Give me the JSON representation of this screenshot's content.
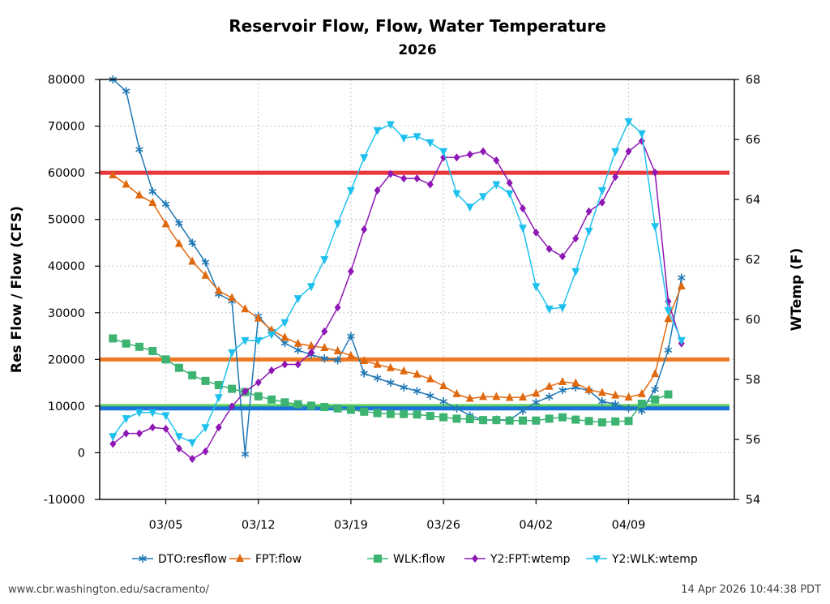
{
  "chart_data": {
    "type": "line",
    "title": "Reservoir Flow, Flow, Water Temperature",
    "subtitle": "2026",
    "ylabel": "Res Flow / Flow (CFS)",
    "y2label": "WTemp (F)",
    "ylim": [
      -10000,
      80000
    ],
    "y2lim": [
      54,
      68
    ],
    "yticks": [
      -10000,
      0,
      10000,
      20000,
      30000,
      40000,
      50000,
      60000,
      70000,
      80000
    ],
    "y2ticks": [
      54,
      56,
      58,
      60,
      62,
      64,
      66,
      68
    ],
    "xlim": [
      "2026-02-28",
      "2026-04-17"
    ],
    "xticks": [
      {
        "date": "2026-03-05",
        "label": "03/05"
      },
      {
        "date": "2026-03-12",
        "label": "03/12"
      },
      {
        "date": "2026-03-19",
        "label": "03/19"
      },
      {
        "date": "2026-03-26",
        "label": "03/26"
      },
      {
        "date": "2026-04-02",
        "label": "04/02"
      },
      {
        "date": "2026-04-09",
        "label": "04/09"
      }
    ],
    "grid": true,
    "legend_placement": "bottom",
    "x": [
      "2026-03-01",
      "2026-03-02",
      "2026-03-03",
      "2026-03-04",
      "2026-03-05",
      "2026-03-06",
      "2026-03-07",
      "2026-03-08",
      "2026-03-09",
      "2026-03-10",
      "2026-03-11",
      "2026-03-12",
      "2026-03-13",
      "2026-03-14",
      "2026-03-15",
      "2026-03-16",
      "2026-03-17",
      "2026-03-18",
      "2026-03-19",
      "2026-03-20",
      "2026-03-21",
      "2026-03-22",
      "2026-03-23",
      "2026-03-24",
      "2026-03-25",
      "2026-03-26",
      "2026-03-27",
      "2026-03-28",
      "2026-03-29",
      "2026-03-30",
      "2026-03-31",
      "2026-04-01",
      "2026-04-02",
      "2026-04-03",
      "2026-04-04",
      "2026-04-05",
      "2026-04-06",
      "2026-04-07",
      "2026-04-08",
      "2026-04-09",
      "2026-04-10",
      "2026-04-11",
      "2026-04-12",
      "2026-04-13"
    ],
    "series": [
      {
        "name": "DTO:resflow",
        "axis": "left",
        "color": "#1f77b4",
        "marker": "star",
        "values": [
          80000,
          77500,
          65000,
          56000,
          53300,
          49200,
          45000,
          40800,
          34000,
          32500,
          -300,
          29300,
          26000,
          23500,
          22000,
          21000,
          20200,
          19800,
          25000,
          17000,
          16000,
          15000,
          14000,
          13200,
          12200,
          11000,
          9500,
          8000,
          7000,
          7100,
          7000,
          9000,
          10800,
          12000,
          13400,
          14000,
          13300,
          11000,
          10400,
          9500,
          9000,
          13600,
          22000,
          37500
        ],
        "_note_skip": ""
      },
      {
        "name": "FPT:flow",
        "axis": "left",
        "color": "#e06910",
        "marker": "triangle-up",
        "values": [
          59500,
          57500,
          55200,
          53600,
          49000,
          44800,
          41000,
          38000,
          34700,
          33200,
          30800,
          28800,
          26300,
          24700,
          23400,
          22900,
          22500,
          21800,
          20800,
          19700,
          18900,
          18200,
          17500,
          16800,
          15800,
          14300,
          12600,
          11600,
          12000,
          12000,
          11800,
          11900,
          12700,
          14200,
          15200,
          14900,
          13500,
          12900,
          12300,
          11900,
          12600,
          16900,
          28700,
          35700
        ]
      },
      {
        "name": "WLK:flow",
        "axis": "left",
        "color": "#3cb371",
        "marker": "square",
        "values": [
          24500,
          23400,
          22700,
          21800,
          20000,
          18200,
          16600,
          15400,
          14500,
          13700,
          13000,
          12100,
          11400,
          10800,
          10400,
          10100,
          9800,
          9500,
          9200,
          8800,
          8500,
          8300,
          8300,
          8200,
          7900,
          7600,
          7300,
          7200,
          7000,
          7000,
          6900,
          6900,
          6900,
          7300,
          7600,
          7100,
          6800,
          6500,
          6700,
          6800,
          10500,
          11400,
          12500,
          null
        ]
      },
      {
        "name": "Y2:FPT:wtemp",
        "axis": "right",
        "color": "#8e17b5",
        "marker": "diamond",
        "values": [
          55.85,
          56.2,
          56.2,
          56.4,
          56.35,
          55.7,
          55.35,
          55.6,
          56.4,
          57.1,
          57.6,
          57.9,
          58.3,
          58.5,
          58.5,
          58.9,
          59.6,
          60.4,
          61.6,
          63.0,
          64.3,
          64.85,
          64.7,
          64.7,
          64.5,
          65.4,
          65.4,
          65.5,
          65.6,
          65.3,
          64.55,
          63.7,
          62.9,
          62.35,
          62.1,
          62.7,
          63.6,
          63.9,
          64.75,
          65.6,
          65.95,
          64.9,
          60.6,
          59.2
        ]
      },
      {
        "name": "Y2:WLK:wtemp",
        "axis": "right",
        "color": "#1ec1ee",
        "marker": "triangle-down",
        "values": [
          56.1,
          56.7,
          56.9,
          56.9,
          56.8,
          56.1,
          55.9,
          56.4,
          57.4,
          58.9,
          59.3,
          59.3,
          59.5,
          59.9,
          60.7,
          61.1,
          62.0,
          63.2,
          64.3,
          65.4,
          66.3,
          66.5,
          66.05,
          66.1,
          65.9,
          65.6,
          64.2,
          63.75,
          64.1,
          64.5,
          64.2,
          63.05,
          61.1,
          60.35,
          60.4,
          61.6,
          62.95,
          64.3,
          65.6,
          66.6,
          66.2,
          63.1,
          60.3,
          59.3
        ]
      }
    ],
    "reference_lines": [
      {
        "axis": "left",
        "value": 60000,
        "color": "#e8383b"
      },
      {
        "axis": "left",
        "value": 20000,
        "color": "#f07822"
      },
      {
        "axis": "left",
        "value": 10000,
        "color": "#5fd15f"
      },
      {
        "axis": "left",
        "value": 9500,
        "color": "#1a73d8"
      }
    ]
  },
  "footer": {
    "left": "www.cbr.washington.edu/sacramento/",
    "right": "14 Apr 2026 10:44:38 PDT"
  }
}
